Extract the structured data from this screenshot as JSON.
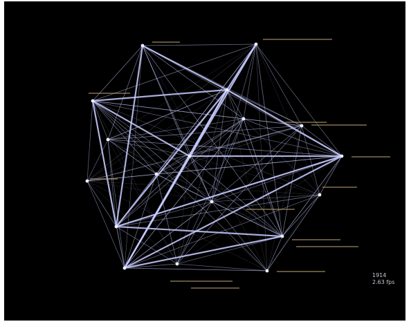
{
  "hud": {
    "frame_count": "1914",
    "fps": "2.63 fps"
  },
  "colors": {
    "background": "#000000",
    "edge": "#c8cbff",
    "node_label": "#b29a6a"
  },
  "graph": {
    "nodes": [
      "n1",
      "n2",
      "n3",
      "n4",
      "n5",
      "n6",
      "n7",
      "n8",
      "n9",
      "n10",
      "n11",
      "n12",
      "n13",
      "n14",
      "n15",
      "n16",
      "n17",
      "n18"
    ]
  }
}
